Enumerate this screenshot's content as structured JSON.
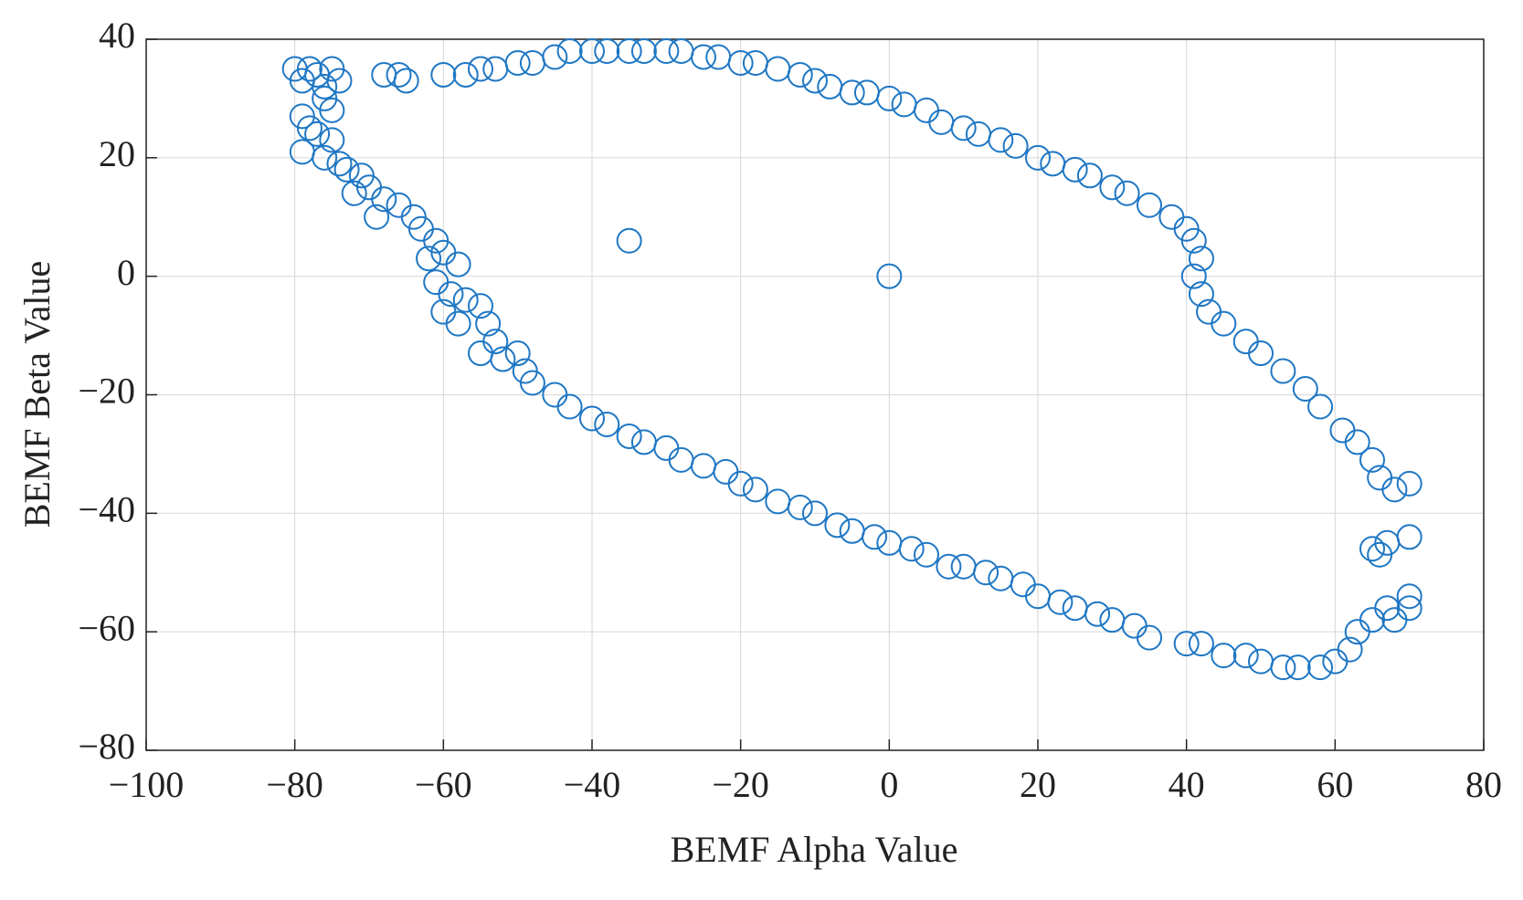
{
  "chart_data": {
    "type": "scatter",
    "xlabel": "BEMF Alpha Value",
    "ylabel": "BEMF Beta Value",
    "color": "#1f77c4",
    "grid": true,
    "xlim": [
      -100,
      80
    ],
    "xticks": [
      {
        "value": -100,
        "label": "−100"
      },
      {
        "value": -80,
        "label": "−80"
      },
      {
        "value": -60,
        "label": "−60"
      },
      {
        "value": -40,
        "label": "−40"
      },
      {
        "value": -20,
        "label": "−20"
      },
      0,
      20,
      40,
      60,
      80
    ],
    "ylim": [
      -80,
      40
    ],
    "yticks": [
      {
        "value": -80,
        "label": "−80"
      },
      {
        "value": -60,
        "label": "−60"
      },
      {
        "value": -40,
        "label": "−40"
      },
      {
        "value": -20,
        "label": "−20"
      },
      0,
      20,
      40
    ],
    "x": [
      -80,
      -79,
      -78,
      -77,
      -76,
      -75,
      -74,
      -76,
      -75,
      -79,
      -78,
      -77,
      -75,
      -79,
      -76,
      -74,
      -73,
      -71,
      -70,
      -72,
      -68,
      -66,
      -69,
      -64,
      -63,
      -61,
      -60,
      -62,
      -58,
      -61,
      -59,
      -57,
      -55,
      -60,
      -58,
      -54,
      -53,
      -55,
      -52,
      -50,
      -49,
      -48,
      -45,
      -43,
      -40,
      -38,
      -35,
      -33,
      -30,
      -28,
      -25,
      -22,
      -20,
      -18,
      -15,
      -12,
      -10,
      -7,
      -5,
      -2,
      0,
      3,
      5,
      8,
      10,
      13,
      15,
      18,
      20,
      23,
      25,
      28,
      30,
      33,
      35,
      40,
      42,
      45,
      48,
      50,
      53,
      55,
      58,
      60,
      62,
      63,
      65,
      67,
      70,
      70,
      68,
      66,
      67,
      65,
      70,
      68,
      70,
      66,
      65,
      63,
      61,
      58,
      56,
      53,
      50,
      48,
      45,
      43,
      42,
      41,
      42,
      41,
      40,
      38,
      35,
      32,
      30,
      27,
      25,
      22,
      20,
      17,
      15,
      12,
      10,
      7,
      5,
      2,
      0,
      -3,
      -5,
      -8,
      -10,
      -12,
      -15,
      -18,
      -20,
      -23,
      -25,
      -28,
      -30,
      -33,
      -35,
      -38,
      -40,
      -43,
      -45,
      -48,
      -50,
      -53,
      -55,
      -57,
      -60,
      -66,
      -65,
      -68,
      -35,
      0
    ],
    "values": [
      35,
      33,
      35,
      34,
      32,
      35,
      33,
      30,
      28,
      27,
      25,
      24,
      23,
      21,
      20,
      19,
      18,
      17,
      15,
      14,
      13,
      12,
      10,
      10,
      8,
      6,
      4,
      3,
      2,
      -1,
      -3,
      -4,
      -5,
      -6,
      -8,
      -8,
      -11,
      -13,
      -14,
      -13,
      -16,
      -18,
      -20,
      -22,
      -24,
      -25,
      -27,
      -28,
      -29,
      -31,
      -32,
      -33,
      -35,
      -36,
      -38,
      -39,
      -40,
      -42,
      -43,
      -44,
      -45,
      -46,
      -47,
      -49,
      -49,
      -50,
      -51,
      -52,
      -54,
      -55,
      -56,
      -57,
      -58,
      -59,
      -61,
      -62,
      -62,
      -64,
      -64,
      -65,
      -66,
      -66,
      -66,
      -65,
      -63,
      -60,
      -58,
      -56,
      -54,
      -56,
      -58,
      -47,
      -45,
      -46,
      -44,
      -36,
      -35,
      -34,
      -31,
      -28,
      -26,
      -22,
      -19,
      -16,
      -13,
      -11,
      -8,
      -6,
      -3,
      0,
      3,
      6,
      8,
      10,
      12,
      14,
      15,
      17,
      18,
      19,
      20,
      22,
      23,
      24,
      25,
      26,
      28,
      29,
      30,
      31,
      31,
      32,
      33,
      34,
      35,
      36,
      36,
      37,
      37,
      38,
      38,
      38,
      38,
      38,
      38,
      38,
      37,
      36,
      36,
      35,
      35,
      34,
      34,
      34,
      33,
      34,
      6,
      0
    ]
  }
}
